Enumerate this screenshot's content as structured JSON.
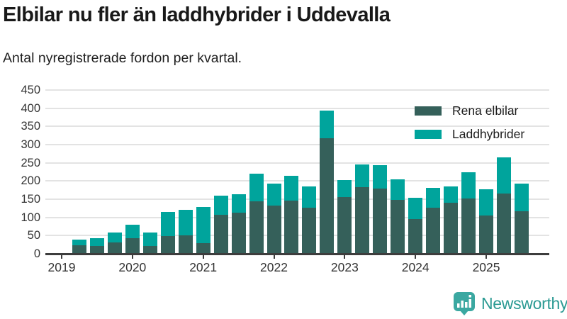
{
  "header": {
    "title": "Elbilar nu fler än laddhybrider i Uddevalla",
    "subtitle": "Antal nyregistrerade fordon per kvartal."
  },
  "chart_data": {
    "type": "bar",
    "stacked": true,
    "title": "Elbilar nu fler än laddhybrider i Uddevalla",
    "subtitle": "Antal nyregistrerade fordon per kvartal.",
    "x": [
      "2019-Q2",
      "2019-Q3",
      "2019-Q4",
      "2020-Q1",
      "2020-Q2",
      "2020-Q3",
      "2020-Q4",
      "2021-Q1",
      "2021-Q2",
      "2021-Q3",
      "2021-Q4",
      "2022-Q1",
      "2022-Q2",
      "2022-Q3",
      "2022-Q4",
      "2023-Q1",
      "2023-Q2",
      "2023-Q3",
      "2023-Q4",
      "2024-Q1",
      "2024-Q2",
      "2024-Q3",
      "2024-Q4",
      "2025-Q1",
      "2025-Q2",
      "2025-Q3"
    ],
    "x_start_offset": 1,
    "series": [
      {
        "name": "Rena elbilar",
        "color": "#35605a",
        "values": [
          22,
          20,
          29,
          41,
          20,
          47,
          49,
          27,
          105,
          111,
          142,
          130,
          145,
          125,
          316,
          154,
          181,
          177,
          147,
          94,
          125,
          138,
          150,
          103,
          163,
          115
        ]
      },
      {
        "name": "Laddhybrider",
        "color": "#00a49c",
        "values": [
          15,
          22,
          27,
          37,
          37,
          67,
          70,
          100,
          53,
          51,
          76,
          61,
          69,
          58,
          76,
          47,
          62,
          65,
          57,
          58,
          54,
          45,
          72,
          72,
          99,
          76
        ]
      }
    ],
    "ylim": [
      0,
      450
    ],
    "yticks": [
      0,
      50,
      100,
      150,
      200,
      250,
      300,
      350,
      400,
      450
    ],
    "x_tick_labels": [
      "2019",
      "2020",
      "2021",
      "2022",
      "2023",
      "2024",
      "2025"
    ],
    "x_tick_positions": [
      0,
      4,
      8,
      12,
      16,
      20,
      24
    ],
    "grid": "horizontal",
    "legend_position": "top-right"
  },
  "footer": {
    "brand": "Newsworthy"
  }
}
